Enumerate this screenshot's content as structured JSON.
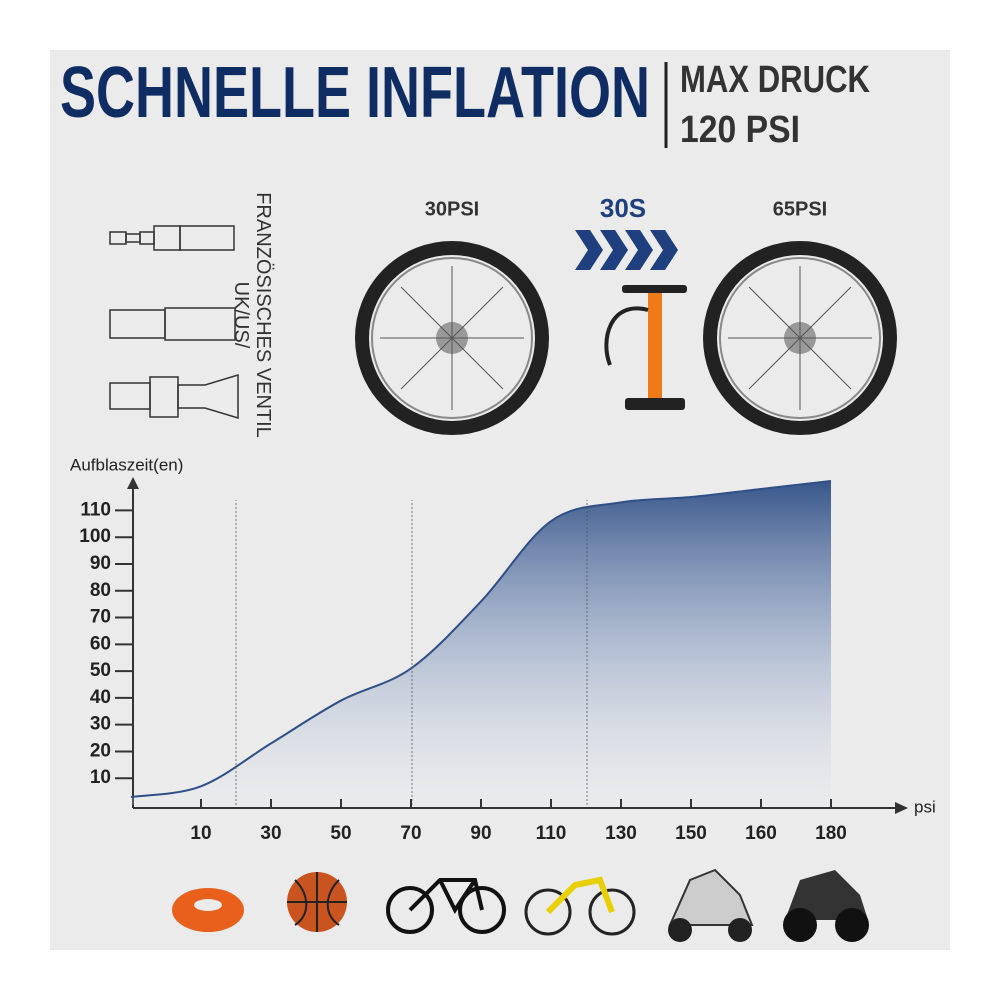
{
  "header": {
    "title": "SCHNELLE INFLATION",
    "subtitle_line1": "MAX DRUCK",
    "subtitle_line2": "120 PSI"
  },
  "valve_label": {
    "line1": "UK/US/",
    "line2": "FRANZÖSISCHES VENTIL"
  },
  "inflation": {
    "before": "30PSI",
    "time": "30S",
    "after": "65PSI"
  },
  "chart_data": {
    "type": "area",
    "y_label": "Aufblaszeit(en)",
    "x_label": "psi",
    "categories": [
      null,
      "10",
      "30",
      "50",
      "70",
      "90",
      "110",
      "130",
      "150",
      "160",
      "180"
    ],
    "values": [
      3,
      7,
      23,
      39,
      51,
      76,
      106,
      113,
      115,
      118,
      121
    ],
    "color": "#2f4f86",
    "ylim": [
      0,
      118
    ],
    "yticks": [
      10,
      20,
      30,
      40,
      50,
      60,
      70,
      80,
      90,
      100,
      110
    ]
  }
}
